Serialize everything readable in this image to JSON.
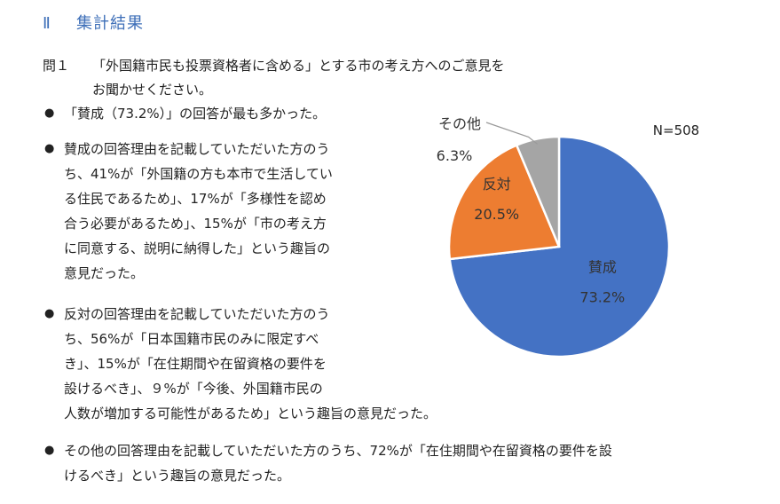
{
  "section": {
    "number": "Ⅱ",
    "title": "集計結果"
  },
  "question": {
    "label": "問１",
    "line1": "「外国籍市民も投票資格者に含める」とする市の考え方へのご意見を",
    "line2": "お聞かせください。"
  },
  "bullets": [
    {
      "text": "「賛成（73.2%）」の回答が最も多かった。"
    },
    {
      "text": "賛成の回答理由を記載していただいた方のう\nち、41%が「外国籍の方も本市で生活してい\nる住民であるため」、17%が「多様性を認め\n合う必要があるため」、15%が「市の考え方\nに同意する、説明に納得した」という趣旨の\n意見だった。"
    },
    {
      "text": "反対の回答理由を記載していただいた方のう\nち、56%が「日本国籍市民のみに限定すべ\nき」、15%が「在住期間や在留資格の要件を\n設けるべき」、９%が「今後、外国籍市民の\n人数が増加する可能性があるため」という趣旨の意見だった。"
    },
    {
      "text": "その他の回答理由を記載していただいた方のうち、72%が「在住期間や在留資格の要件を設\nけるべき」という趣旨の意見だった。"
    }
  ],
  "bullet_symbol": "●",
  "chart_data": {
    "type": "pie",
    "n_label": "N=508",
    "slices": [
      {
        "label": "賛成",
        "value": 73.2,
        "value_label": "73.2%",
        "color": "#4472c4"
      },
      {
        "label": "反対",
        "value": 20.5,
        "value_label": "20.5%",
        "color": "#ed7d31"
      },
      {
        "label": "その他",
        "value": 6.3,
        "value_label": "6.3%",
        "color": "#a5a5a5"
      }
    ]
  }
}
